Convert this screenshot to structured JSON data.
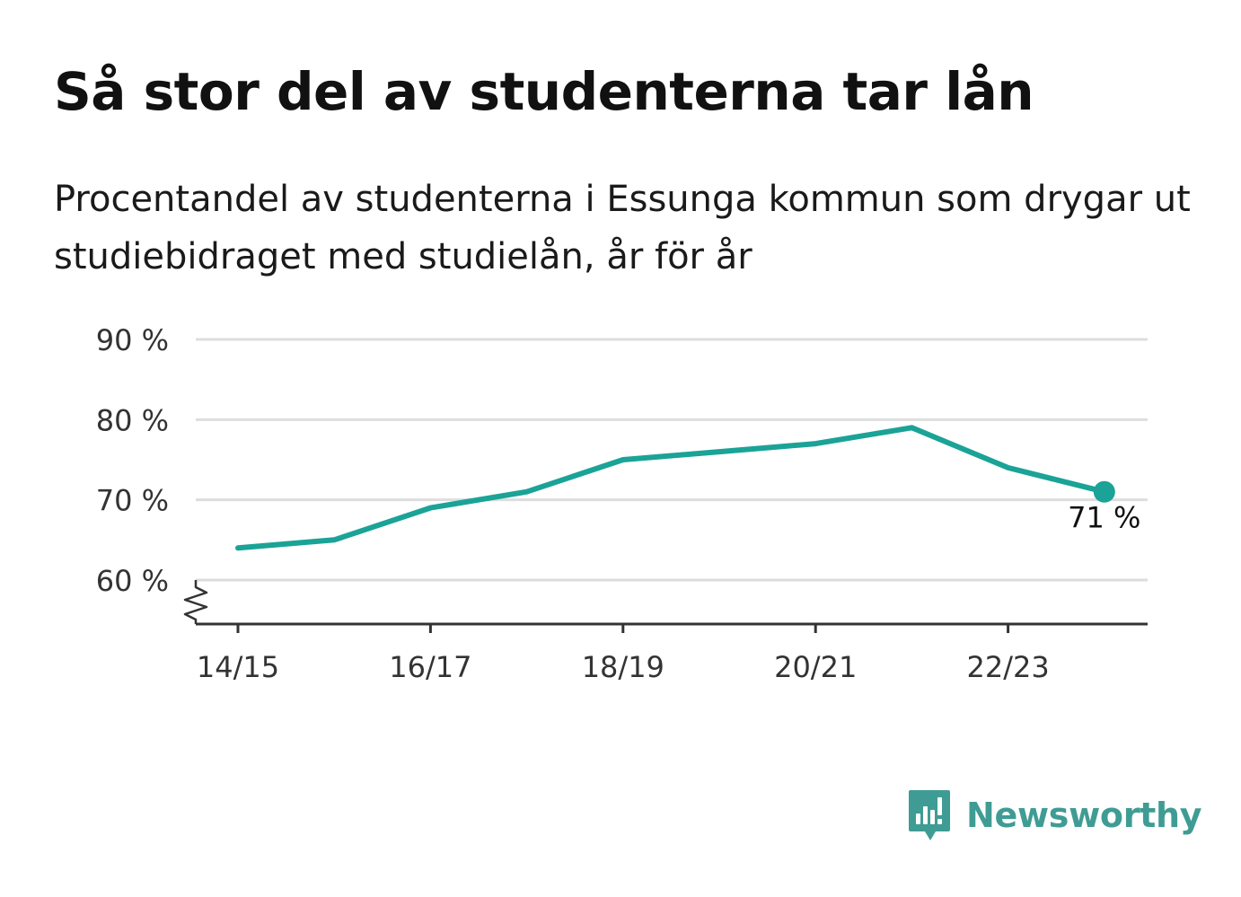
{
  "title": "Så stor del av studenterna tar lån",
  "subtitle": "Procentandel av studenterna i Essunga kommun som drygar ut studiebidraget med studielån, år för år",
  "brand": {
    "name": "Newsworthy",
    "color": "#3f9c94"
  },
  "colors": {
    "line": "#1aa396",
    "grid": "#dddddd",
    "axis": "#333333"
  },
  "chart_data": {
    "type": "line",
    "x": [
      "14/15",
      "15/16",
      "16/17",
      "17/18",
      "18/19",
      "19/20",
      "20/21",
      "21/22",
      "22/23",
      "23/24"
    ],
    "x_tick_labels": [
      "14/15",
      "16/17",
      "18/19",
      "20/21",
      "22/23"
    ],
    "series": [
      {
        "values": [
          64,
          65,
          69,
          71,
          75,
          76,
          77,
          79,
          74,
          71
        ]
      }
    ],
    "ylim": [
      60,
      90
    ],
    "y_ticks": [
      60,
      70,
      80,
      90
    ],
    "y_tick_labels": [
      "60 %",
      "70 %",
      "80 %",
      "90 %"
    ],
    "y_axis_broken": true,
    "last_value_label": "71 %",
    "grid": true,
    "xlabel": "",
    "ylabel": ""
  }
}
